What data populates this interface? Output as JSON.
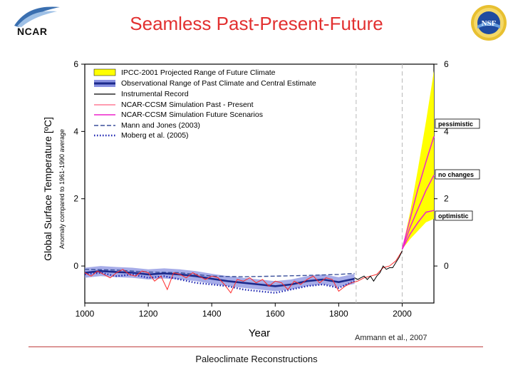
{
  "header": {
    "title": "Seamless Past-Present-Future",
    "org_logo_text": "NCAR",
    "sponsor_logo_text": "NSF"
  },
  "footer": {
    "citation": "Ammann et al., 2007",
    "caption": "Paleoclimate Reconstructions"
  },
  "colors": {
    "title": "#e23030",
    "ipcc_fill": "#ffff00",
    "obs_band": "#8890e0",
    "obs_central": "#1c2a8c",
    "instrumental": "#000000",
    "sim_past": "#ff2a2a",
    "sim_future": "#ee22cc",
    "mann_jones": "#3a4f9a",
    "moberg": "#1a22b0",
    "vlines": "#b8b8b8"
  },
  "chart_data": {
    "type": "line",
    "xlabel": "Year",
    "ylabel": "Global Surface Temperature [ºC]",
    "ylabel_sub": "Anomaly compared to 1961-1990 average",
    "xlim": [
      1000,
      2100
    ],
    "ylim": [
      -1.1,
      6
    ],
    "xticks": [
      1000,
      1200,
      1400,
      1600,
      1800,
      2000
    ],
    "yticks": [
      0,
      2,
      4,
      6
    ],
    "vertical_lines": [
      1855,
      2000
    ],
    "legend": [
      {
        "key": "ipcc",
        "label": "IPCC-2001 Projected Range of Future Climate",
        "style": "band-yellow"
      },
      {
        "key": "obs",
        "label": "Observational Range of Past Climate and Central Estimate",
        "style": "band-blue"
      },
      {
        "key": "instr",
        "label": "Instrumental Record",
        "style": "line-black"
      },
      {
        "key": "simpast",
        "label": "NCAR-CCSM Simulation Past - Present",
        "style": "line-red"
      },
      {
        "key": "simfut",
        "label": "NCAR-CCSM Simulation Future Scenarios",
        "style": "line-magenta"
      },
      {
        "key": "mann",
        "label": "Mann and Jones (2003)",
        "style": "dashed"
      },
      {
        "key": "moberg",
        "label": "Moberg et al. (2005)",
        "style": "dotted"
      }
    ],
    "ipcc_range": {
      "x": [
        2000,
        2025,
        2050,
        2075,
        2100
      ],
      "upper": [
        0.5,
        1.6,
        2.9,
        4.3,
        5.8
      ],
      "lower": [
        0.5,
        0.8,
        1.05,
        1.3,
        1.4
      ]
    },
    "observational_central": {
      "x": [
        1000,
        1050,
        1100,
        1150,
        1200,
        1250,
        1300,
        1350,
        1400,
        1450,
        1500,
        1550,
        1600,
        1650,
        1700,
        1750,
        1800,
        1850
      ],
      "y": [
        -0.2,
        -0.15,
        -0.18,
        -0.2,
        -0.25,
        -0.22,
        -0.25,
        -0.3,
        -0.38,
        -0.45,
        -0.5,
        -0.55,
        -0.6,
        -0.55,
        -0.45,
        -0.4,
        -0.48,
        -0.38
      ]
    },
    "observational_halfwidth": 0.15,
    "mann_jones": {
      "x": [
        1000,
        1100,
        1200,
        1300,
        1400,
        1500,
        1600,
        1700,
        1800,
        1850
      ],
      "y": [
        -0.1,
        -0.12,
        -0.18,
        -0.2,
        -0.3,
        -0.32,
        -0.3,
        -0.28,
        -0.25,
        -0.22
      ]
    },
    "moberg": {
      "x": [
        1000,
        1050,
        1100,
        1150,
        1200,
        1250,
        1300,
        1350,
        1400,
        1450,
        1500,
        1550,
        1600,
        1650,
        1700,
        1750,
        1800,
        1850
      ],
      "y": [
        -0.25,
        -0.2,
        -0.3,
        -0.25,
        -0.35,
        -0.3,
        -0.4,
        -0.5,
        -0.55,
        -0.6,
        -0.7,
        -0.75,
        -0.8,
        -0.7,
        -0.6,
        -0.55,
        -0.65,
        -0.45
      ]
    },
    "instrumental": {
      "x": [
        1850,
        1860,
        1870,
        1880,
        1890,
        1900,
        1910,
        1920,
        1930,
        1940,
        1950,
        1960,
        1970,
        1980,
        1990,
        2000
      ],
      "y": [
        -0.35,
        -0.4,
        -0.35,
        -0.3,
        -0.4,
        -0.3,
        -0.45,
        -0.3,
        -0.2,
        0.0,
        -0.1,
        -0.05,
        -0.05,
        0.1,
        0.25,
        0.45
      ]
    },
    "sim_past": {
      "x": [
        1000,
        1020,
        1040,
        1060,
        1080,
        1100,
        1120,
        1140,
        1160,
        1180,
        1200,
        1220,
        1240,
        1260,
        1280,
        1300,
        1320,
        1340,
        1360,
        1380,
        1400,
        1420,
        1440,
        1460,
        1480,
        1500,
        1520,
        1540,
        1560,
        1580,
        1600,
        1620,
        1640,
        1660,
        1680,
        1700,
        1720,
        1740,
        1760,
        1780,
        1800,
        1820,
        1840,
        1860,
        1880,
        1900,
        1920,
        1940,
        1960,
        1980,
        2000
      ],
      "y": [
        -0.2,
        -0.3,
        -0.15,
        -0.25,
        -0.35,
        -0.2,
        -0.1,
        -0.25,
        -0.3,
        -0.15,
        -0.2,
        -0.45,
        -0.3,
        -0.7,
        -0.2,
        -0.25,
        -0.35,
        -0.2,
        -0.3,
        -0.4,
        -0.3,
        -0.35,
        -0.55,
        -0.8,
        -0.4,
        -0.45,
        -0.35,
        -0.5,
        -0.4,
        -0.6,
        -0.45,
        -0.5,
        -0.7,
        -0.45,
        -0.55,
        -0.4,
        -0.3,
        -0.5,
        -0.35,
        -0.4,
        -0.75,
        -0.6,
        -0.5,
        -0.45,
        -0.35,
        -0.3,
        -0.25,
        -0.05,
        0.0,
        0.15,
        0.45
      ]
    },
    "future_scenarios": [
      {
        "name": "pessimistic",
        "x": [
          2000,
          2025,
          2050,
          2075,
          2100
        ],
        "y": [
          0.5,
          1.4,
          2.3,
          3.1,
          3.85
        ]
      },
      {
        "name": "no changes",
        "x": [
          2000,
          2025,
          2050,
          2075,
          2100
        ],
        "y": [
          0.5,
          1.15,
          1.7,
          2.25,
          2.7
        ]
      },
      {
        "name": "optimistic",
        "x": [
          2000,
          2025,
          2050,
          2075,
          2100
        ],
        "y": [
          0.5,
          0.95,
          1.3,
          1.6,
          1.65
        ]
      }
    ],
    "scenario_labels": [
      {
        "name": "pessimistic",
        "label": "pessimistic"
      },
      {
        "name": "no changes",
        "label": "no changes"
      },
      {
        "name": "optimistic",
        "label": "optimistic"
      }
    ]
  }
}
